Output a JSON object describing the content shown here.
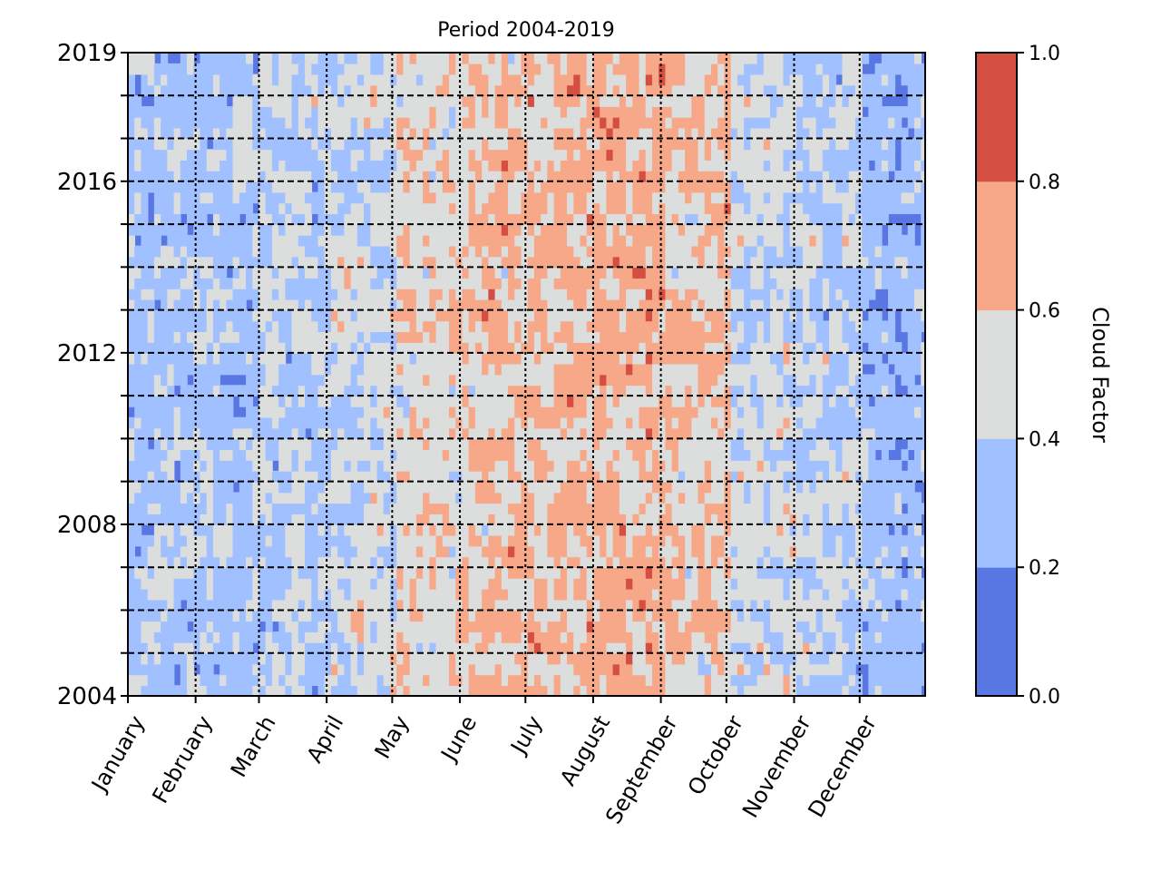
{
  "chart_data": {
    "type": "heatmap",
    "title": "Period 2004-2019",
    "xlabel": "",
    "ylabel": "",
    "x_categories": [
      "January",
      "February",
      "March",
      "April",
      "May",
      "June",
      "July",
      "August",
      "September",
      "October",
      "November",
      "December"
    ],
    "xlim": [
      1,
      366
    ],
    "month_start_day_of_year": [
      1,
      32,
      61,
      92,
      122,
      153,
      183,
      214,
      245,
      275,
      306,
      336
    ],
    "ylim": [
      2004,
      2019
    ],
    "y_tick_labels": [
      "2004",
      "2008",
      "2012",
      "2016",
      "2019"
    ],
    "y_ticks_year": [
      2004,
      2008,
      2012,
      2016,
      2019
    ],
    "y_minor_ticks_year": [
      2005,
      2006,
      2007,
      2009,
      2010,
      2011,
      2013,
      2014,
      2015,
      2017,
      2018
    ],
    "grid": "dashed lines at every year and every month boundary",
    "colorbar": {
      "label": "Cloud Factor",
      "levels": [
        0.0,
        0.2,
        0.4,
        0.6,
        0.8,
        1.0
      ],
      "tick_labels": [
        "0.0",
        "0.2",
        "0.4",
        "0.6",
        "0.8",
        "1.0"
      ],
      "colors": [
        "#5977e3",
        "#a1c0ff",
        "#dcdddd",
        "#f7a889",
        "#d44e41"
      ]
    },
    "z_summary": {
      "description_by_month_mean_cloud_factor": [
        0.25,
        0.25,
        0.3,
        0.35,
        0.45,
        0.5,
        0.55,
        0.55,
        0.5,
        0.35,
        0.3,
        0.2
      ],
      "higher_cloud_factor_months": [
        "June",
        "July",
        "August",
        "September"
      ]
    }
  }
}
